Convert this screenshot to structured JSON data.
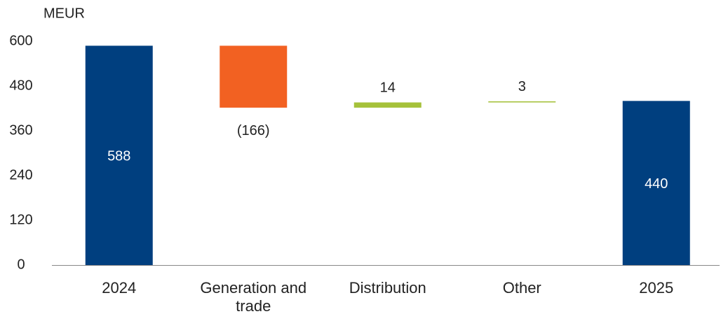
{
  "chart_data": {
    "type": "waterfall",
    "y_label": "MEUR",
    "categories": [
      "2024",
      "Generation and trade",
      "Distribution",
      "Other",
      "2025"
    ],
    "values": [
      588,
      -166,
      14,
      3,
      440
    ],
    "value_labels": [
      "588",
      "(166)",
      "14",
      "3",
      "440"
    ],
    "totals": [
      true,
      false,
      false,
      false,
      true
    ],
    "colors": [
      "#003f7f",
      "#f26122",
      "#a5c13a",
      "#a5c13a",
      "#003f7f"
    ],
    "ylim": [
      0,
      600
    ],
    "yticks": [
      0,
      120,
      240,
      360,
      480,
      600
    ],
    "grid": false
  }
}
